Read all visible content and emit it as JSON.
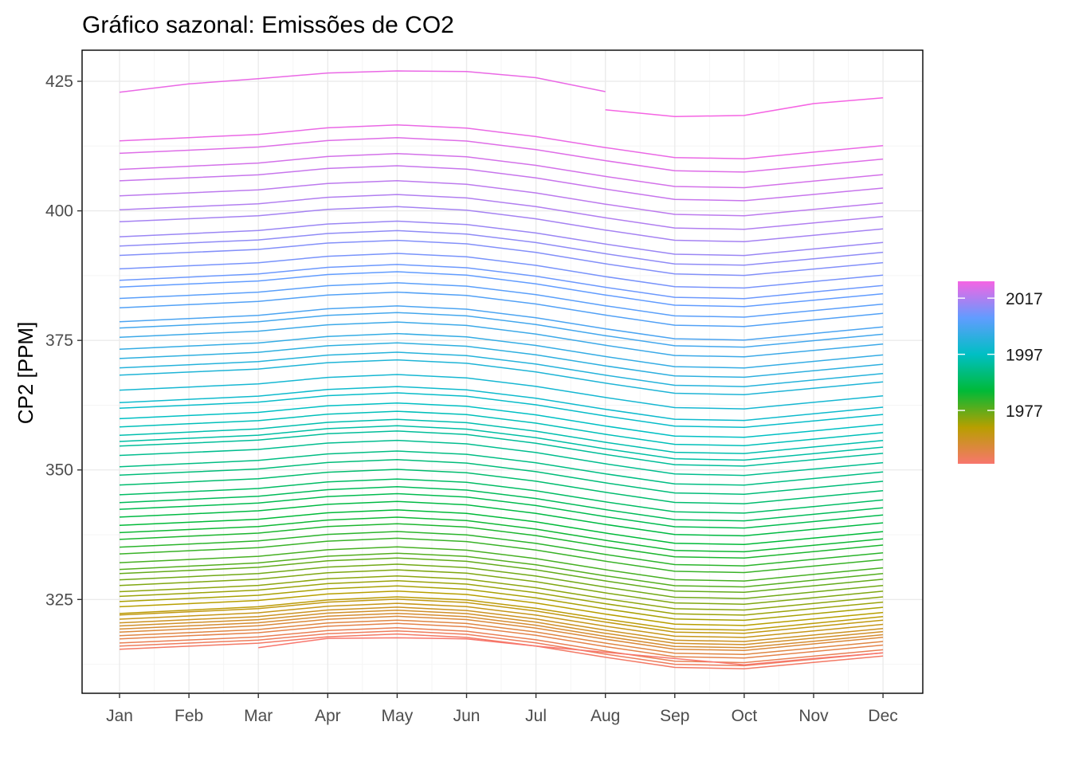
{
  "chart_data": {
    "type": "line",
    "title": "Gráfico sazonal: Emissões de CO2",
    "xlabel": "",
    "ylabel": "CP2 [PPM]",
    "categories": [
      "Jan",
      "Feb",
      "Mar",
      "Apr",
      "May",
      "Jun",
      "Jul",
      "Aug",
      "Sep",
      "Oct",
      "Nov",
      "Dec"
    ],
    "ylim": [
      306.9,
      431.0
    ],
    "y_ticks": [
      325,
      350,
      375,
      400,
      425
    ],
    "grid": true,
    "series_years": {
      "first": 1958,
      "last": 2021
    },
    "seasonal_shape": [
      0.0,
      0.65,
      1.3,
      2.6,
      3.2,
      2.6,
      1.0,
      -1.1,
      -3.0,
      -3.2,
      -1.9,
      -0.6
    ],
    "series_jan_values": [
      315.4,
      316.0,
      316.6,
      317.4,
      318.0,
      318.7,
      319.3,
      319.9,
      320.5,
      321.2,
      322.0,
      322.3,
      323.6,
      324.6,
      325.6,
      326.5,
      327.7,
      328.8,
      330.0,
      330.8,
      332.1,
      333.8,
      335.1,
      336.6,
      337.9,
      339.3,
      340.9,
      342.4,
      343.7,
      345.2,
      347.1,
      349.0,
      350.6,
      352.8,
      354.6,
      355.5,
      356.7,
      358.3,
      359.9,
      361.9,
      363.0,
      365.4,
      368.3,
      369.7,
      371.5,
      373.3,
      375.6,
      377.4,
      378.6,
      381.3,
      383.1,
      385.3,
      386.6,
      388.8,
      391.4,
      393.2,
      395.0,
      397.9,
      400.2,
      402.9,
      405.8,
      408.0,
      411.1,
      413.5
    ],
    "series_dec_values": [
      314.7,
      315.3,
      315.9,
      316.8,
      317.5,
      318.3,
      318.8,
      319.4,
      320.0,
      320.8,
      321.6,
      322.3,
      323.1,
      324.1,
      325.1,
      326.1,
      327.2,
      328.3,
      329.5,
      330.6,
      331.7,
      333.3,
      334.6,
      336.1,
      337.3,
      338.7,
      340.4,
      341.9,
      343.3,
      344.8,
      346.6,
      348.4,
      350.2,
      352.0,
      353.8,
      355.0,
      356.3,
      357.8,
      359.4,
      361.3,
      362.7,
      364.9,
      367.6,
      369.2,
      371.0,
      372.8,
      374.9,
      376.8,
      378.2,
      380.8,
      382.6,
      384.6,
      386.2,
      388.2,
      390.6,
      392.6,
      394.5,
      397.1,
      399.5,
      402.1,
      405.0,
      407.6,
      410.6,
      413.2
    ],
    "partial_series": [
      {
        "year": 1958,
        "values": [
          null,
          null,
          315.7,
          317.5,
          317.6,
          317.4,
          316.0,
          314.8,
          313.6,
          312.4,
          313.6,
          314.7
        ]
      },
      {
        "year": 2022,
        "values": [
          422.9,
          424.5,
          425.5,
          426.6,
          427.0,
          426.9,
          425.7,
          423.0,
          null,
          null,
          null,
          null
        ]
      },
      {
        "year": 2023,
        "values": [
          null,
          null,
          null,
          null,
          null,
          null,
          null,
          419.5,
          418.2,
          418.4,
          420.7,
          421.8
        ]
      }
    ],
    "legend": {
      "position": "right",
      "type": "colorbar",
      "labels": [
        "2017",
        "1997",
        "1977"
      ],
      "label_values": [
        2017,
        1997,
        1977
      ],
      "range": [
        1958,
        2023
      ],
      "colors": [
        "#F8766D",
        "#B79F00",
        "#00BA38",
        "#00BFC4",
        "#619CFF",
        "#F564E3"
      ]
    },
    "colors": {
      "panel_border": "#000000",
      "grid_major": "#ebebeb",
      "grid_minor": "#f5f5f5",
      "tick_text": "#4d4d4d"
    }
  }
}
